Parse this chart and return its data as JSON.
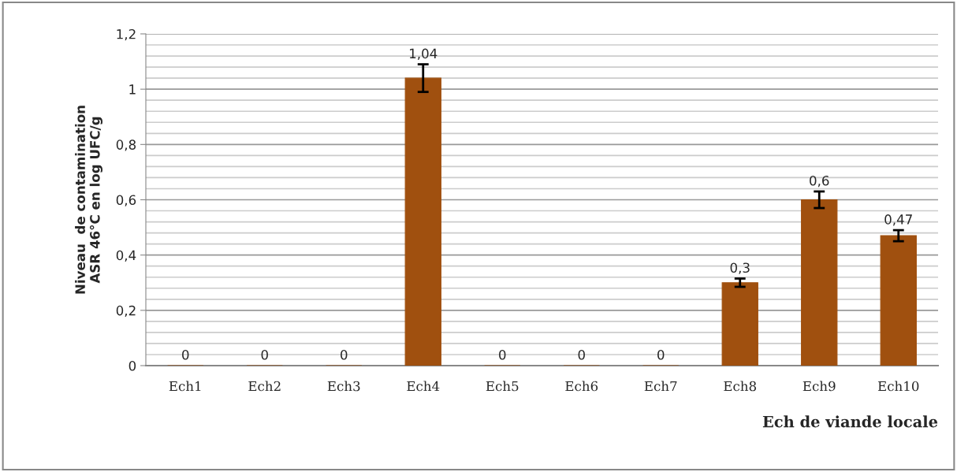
{
  "chart_data": {
    "type": "bar",
    "xlabel": "Ech de viande locale",
    "ylabel": "Niveau  de contamination\nASR 46°C en log UFC/g",
    "categories": [
      "Ech1",
      "Ech2",
      "Ech3",
      "Ech4",
      "Ech5",
      "Ech6",
      "Ech7",
      "Ech8",
      "Ech9",
      "Ech10"
    ],
    "values": [
      0,
      0,
      0,
      1.04,
      0,
      0,
      0,
      0.3,
      0.6,
      0.47
    ],
    "errors": [
      null,
      null,
      null,
      0.05,
      null,
      null,
      null,
      0.015,
      0.03,
      0.02
    ],
    "value_labels": [
      "0",
      "0",
      "0",
      "1,04",
      "0",
      "0",
      "0",
      "0,3",
      "0,6",
      "0,47"
    ],
    "color": "#a0500f",
    "ylim": [
      0,
      1.2
    ],
    "yticks": [
      0,
      {
        "value": 0.2,
        "label": "0,2"
      },
      {
        "value": 0.4,
        "label": "0,4"
      },
      {
        "value": 0.6,
        "label": "0,6"
      },
      {
        "value": 0.8,
        "label": "0,8"
      },
      1,
      {
        "value": 1.2,
        "label": "1,2"
      }
    ],
    "grid": "y",
    "legend": false
  }
}
